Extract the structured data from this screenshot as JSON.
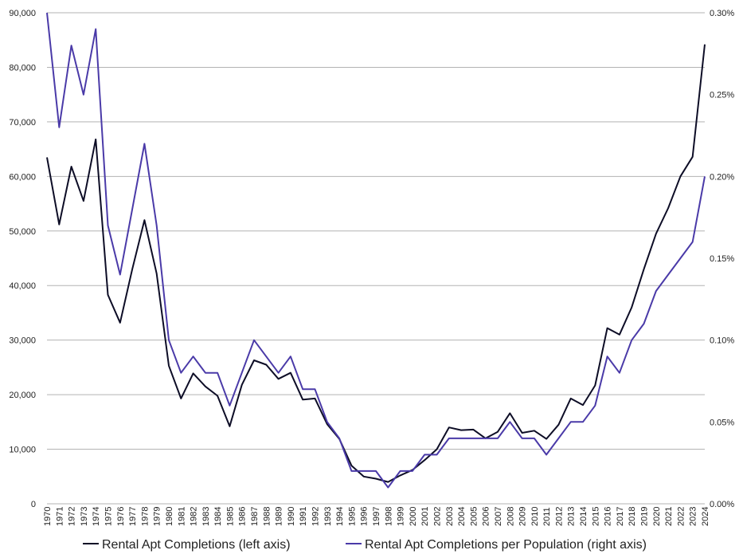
{
  "chart_data": {
    "type": "line",
    "x": [
      1970,
      1971,
      1972,
      1973,
      1974,
      1975,
      1976,
      1977,
      1978,
      1979,
      1980,
      1981,
      1982,
      1983,
      1984,
      1985,
      1986,
      1987,
      1988,
      1989,
      1990,
      1991,
      1992,
      1993,
      1994,
      1995,
      1996,
      1997,
      1998,
      1999,
      2000,
      2001,
      2002,
      2003,
      2004,
      2005,
      2006,
      2007,
      2008,
      2009,
      2010,
      2011,
      2012,
      2013,
      2014,
      2015,
      2016,
      2017,
      2018,
      2019,
      2020,
      2021,
      2022,
      2023,
      2024
    ],
    "x_tick_labels": [
      "1970",
      "1971",
      "1972",
      "1973",
      "1974",
      "1975",
      "1976",
      "1977",
      "1978",
      "1979",
      "1980",
      "1981",
      "1982",
      "1983",
      "1984",
      "1985",
      "1986",
      "1987",
      "1988",
      "1989",
      "1990",
      "1991",
      "1992",
      "1993",
      "1994",
      "1995",
      "1996",
      "1997",
      "1998",
      "1999",
      "2000",
      "2001",
      "2002",
      "2003",
      "2004",
      "2005",
      "2006",
      "2007",
      "2008",
      "2009",
      "2010",
      "2011",
      "2012",
      "2013",
      "2014",
      "2015",
      "2016",
      "2017",
      "2018",
      "2019",
      "2020",
      "2021",
      "2022",
      "2023",
      "2024"
    ],
    "y_left": {
      "ylim": [
        0,
        90000
      ],
      "tick_labels": [
        "0",
        "10,000",
        "20,000",
        "30,000",
        "40,000",
        "50,000",
        "60,000",
        "70,000",
        "80,000",
        "90,000"
      ]
    },
    "y_right": {
      "ylim": [
        0,
        0.3
      ],
      "tick_labels": [
        "0.00%",
        "0.05%",
        "0.10%",
        "0.15%",
        "0.20%",
        "0.25%",
        "0.30%"
      ]
    },
    "grid": true,
    "legend_position": "bottom",
    "series": [
      {
        "name": "Rental Apt Completions (left axis)",
        "axis": "left",
        "color": "#0d0d26",
        "values": [
          63500,
          51200,
          61800,
          55500,
          66800,
          38300,
          33200,
          43000,
          52000,
          42200,
          25300,
          19300,
          23900,
          21500,
          19800,
          14200,
          21800,
          26300,
          25500,
          22900,
          24000,
          19100,
          19300,
          14600,
          11900,
          7000,
          5000,
          4600,
          4000,
          5200,
          6200,
          8000,
          10000,
          14000,
          13500,
          13600,
          12000,
          13200,
          16600,
          13000,
          13400,
          11900,
          14500,
          19300,
          18100,
          21700,
          32200,
          31000,
          36000,
          43000,
          49500,
          54200,
          60000,
          63600,
          84200
        ]
      },
      {
        "name": "Rental Apt Completions per Population (right axis)",
        "axis": "right",
        "color": "#4a3aa8",
        "values": [
          0.3,
          0.23,
          0.28,
          0.25,
          0.29,
          0.17,
          0.14,
          0.18,
          0.22,
          0.17,
          0.1,
          0.08,
          0.09,
          0.08,
          0.08,
          0.06,
          0.08,
          0.1,
          0.09,
          0.08,
          0.09,
          0.07,
          0.07,
          0.05,
          0.04,
          0.02,
          0.02,
          0.02,
          0.01,
          0.02,
          0.02,
          0.03,
          0.03,
          0.04,
          0.04,
          0.04,
          0.04,
          0.04,
          0.05,
          0.04,
          0.04,
          0.03,
          0.04,
          0.05,
          0.05,
          0.06,
          0.09,
          0.08,
          0.1,
          0.11,
          0.13,
          0.14,
          0.15,
          0.16,
          0.2
        ]
      }
    ]
  }
}
